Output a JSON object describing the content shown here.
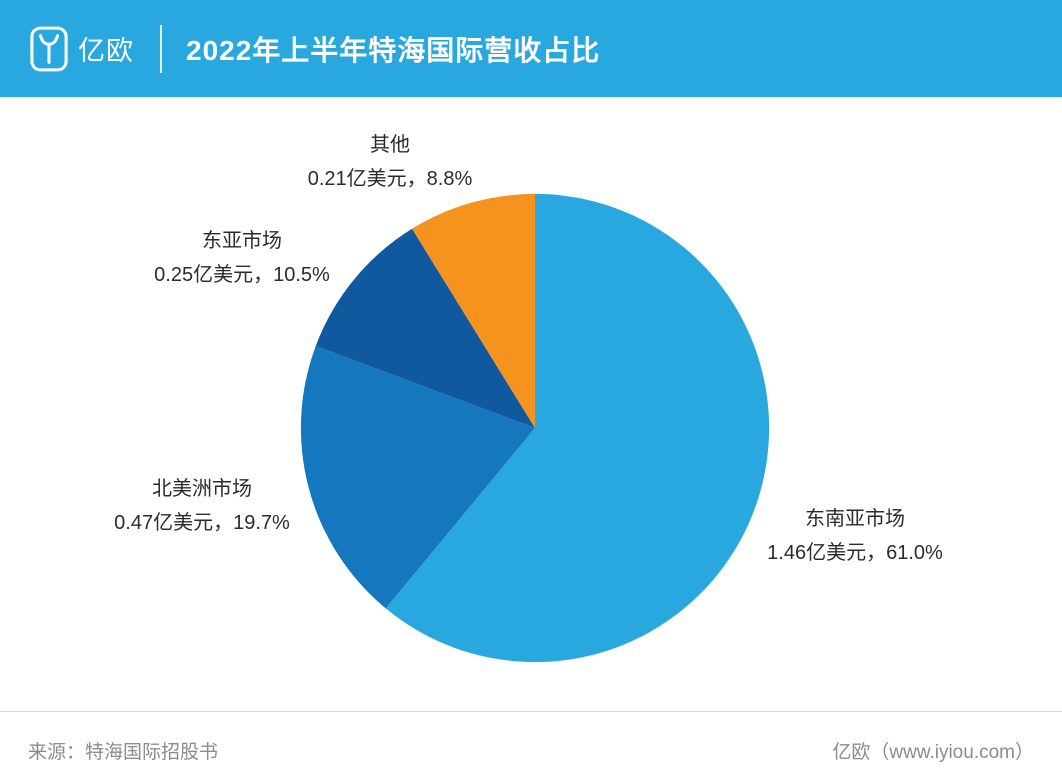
{
  "header": {
    "brand": "亿欧",
    "title": "2022年上半年特海国际营收占比",
    "bg_color": "#29A8DF"
  },
  "chart_data": {
    "type": "pie",
    "title": "2022年上半年特海国际营收占比",
    "direction": "clockwise",
    "start_angle_deg": 0,
    "legend": "none",
    "unit": "亿美元",
    "slices": [
      {
        "label": "东南亚市场",
        "amount": 1.46,
        "percent": 61.0,
        "value_text": "1.46亿美元，61.0%",
        "color": "#29A8DF"
      },
      {
        "label": "北美洲市场",
        "amount": 0.47,
        "percent": 19.7,
        "value_text": "0.47亿美元，19.7%",
        "color": "#1577BE"
      },
      {
        "label": "东亚市场",
        "amount": 0.25,
        "percent": 10.5,
        "value_text": "0.25亿美元，10.5%",
        "color": "#10599F"
      },
      {
        "label": "其他",
        "amount": 0.21,
        "percent": 8.8,
        "value_text": "0.21亿美元，8.8%",
        "color": "#F6921E"
      }
    ]
  },
  "footer": {
    "source": "来源：特海国际招股书",
    "site": "亿欧（www.iyiou.com）"
  }
}
